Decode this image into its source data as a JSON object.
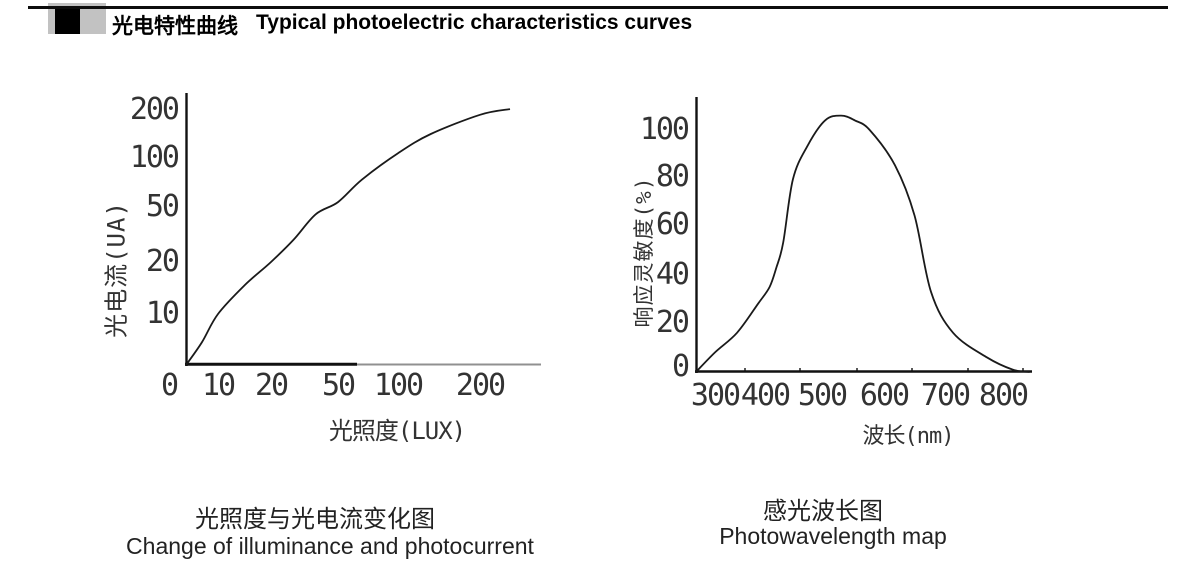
{
  "header": {
    "title_zh": "光电特性曲线",
    "title_en": "Typical photoelectric characteristics curves"
  },
  "charts": {
    "left": {
      "y_ticks": [
        "200",
        "100",
        "50",
        "20",
        "10"
      ],
      "x_ticks": [
        "0",
        "10",
        "20",
        "50",
        "100",
        "200"
      ],
      "x_axis_label": "光照度(LUX)",
      "y_axis_label": "光电流(UA)",
      "caption_zh": "光照度与光电流变化图",
      "caption_en": "Change of illuminance and photocurrent"
    },
    "right": {
      "y_ticks": [
        "100",
        "80",
        "60",
        "40",
        "20",
        "0"
      ],
      "x_ticks": [
        "300",
        "400",
        "500",
        "600",
        "700",
        "800"
      ],
      "x_axis_label": "波长(nm)",
      "y_axis_label": "响应灵敏度(%)",
      "caption_zh": "感光波长图",
      "caption_en": "Photowavelength map"
    }
  },
  "chart_data": [
    {
      "type": "line",
      "title": "光照度与光电流变化图 Change of illuminance and photocurrent",
      "xlabel": "光照度(LUX)",
      "ylabel": "光电流(UA)",
      "x_scale": "log-like",
      "y_scale": "log-like",
      "x_tick_values": [
        0,
        10,
        20,
        50,
        100,
        200
      ],
      "y_tick_values": [
        10,
        20,
        50,
        100,
        200
      ],
      "grid": false,
      "legend": "none",
      "x": [
        0,
        5,
        10,
        15,
        20,
        30,
        40,
        50,
        70,
        100,
        140,
        200,
        250
      ],
      "y": [
        0,
        4.5,
        10,
        15.5,
        20,
        32,
        46,
        55,
        78,
        110,
        150,
        190,
        205
      ]
    },
    {
      "type": "line",
      "title": "感光波长图 Photowavelength map",
      "xlabel": "波长(nm)",
      "ylabel": "响应灵敏度(%)",
      "x_tick_values": [
        300,
        400,
        500,
        600,
        700,
        800
      ],
      "y_tick_values": [
        0,
        20,
        40,
        60,
        80,
        100
      ],
      "grid": false,
      "legend": "none",
      "peak": {
        "wavelength_nm": 530,
        "sensitivity_pct": 106
      },
      "x": [
        267,
        300,
        344,
        386,
        408,
        420,
        432,
        449,
        474,
        505,
        531,
        553,
        577,
        618,
        650,
        677,
        714,
        772,
        820,
        855
      ],
      "y": [
        0,
        8,
        16,
        28,
        35,
        43,
        53,
        79,
        93,
        104,
        106,
        104,
        100,
        85,
        64,
        33,
        16,
        6,
        1,
        0
      ]
    }
  ],
  "colors": {
    "curve": "#1a1a1a",
    "axis": "#111111",
    "axis_faded": "#909090",
    "text": "#222222",
    "bullet_bg": "#c2c2c2"
  }
}
